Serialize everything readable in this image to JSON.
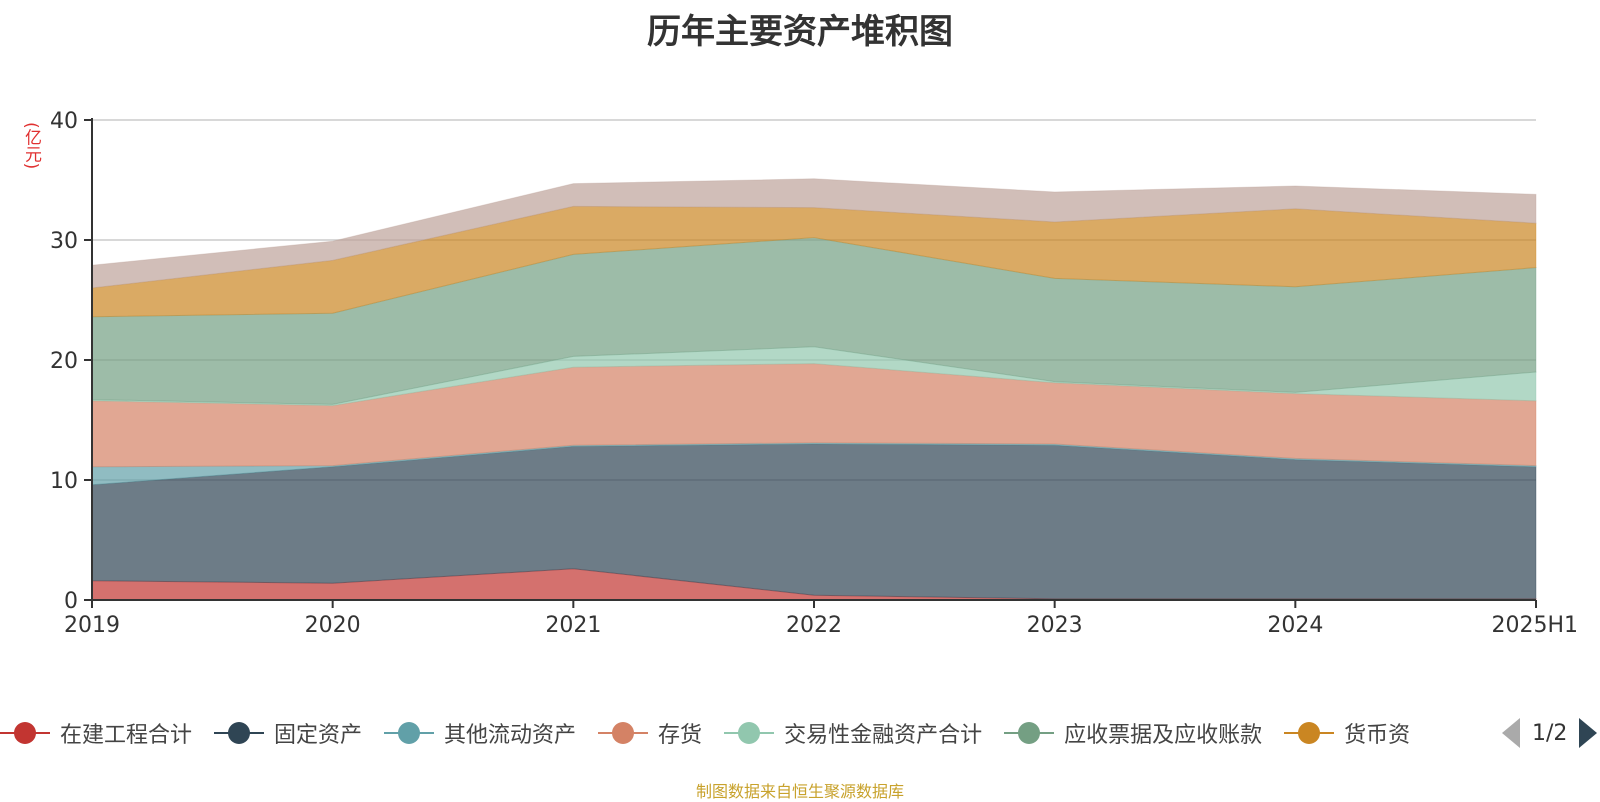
{
  "chart_data": {
    "type": "area",
    "stacked": true,
    "title": "历年主要资产堆积图",
    "ylabel": "(亿元)",
    "ylim": [
      0,
      40
    ],
    "yticks": [
      0,
      10,
      20,
      30,
      40
    ],
    "grid": true,
    "x": [
      "2019",
      "2020",
      "2021",
      "2022",
      "2023",
      "2024",
      "2025H1"
    ],
    "series": [
      {
        "name": "在建工程合计",
        "color": "#c23531",
        "values": [
          1.6,
          1.4,
          2.6,
          0.4,
          0.1,
          0.1,
          0.1
        ]
      },
      {
        "name": "固定资产",
        "color": "#2f4554",
        "values": [
          8.0,
          9.7,
          10.2,
          12.6,
          12.8,
          11.6,
          11.0
        ]
      },
      {
        "name": "其他流动资产",
        "color": "#61a0a8",
        "values": [
          1.5,
          0.1,
          0.1,
          0.1,
          0.1,
          0.1,
          0.1
        ]
      },
      {
        "name": "存货",
        "color": "#d48265",
        "values": [
          5.5,
          5.0,
          6.5,
          6.6,
          5.1,
          5.4,
          5.4
        ]
      },
      {
        "name": "交易性金融资产合计",
        "color": "#91c7ae",
        "values": [
          0.1,
          0.1,
          0.9,
          1.4,
          0.1,
          0.1,
          2.4
        ]
      },
      {
        "name": "应收票据及应收账款",
        "color": "#749f83",
        "values": [
          6.9,
          7.6,
          8.5,
          9.1,
          8.6,
          8.8,
          8.7
        ]
      },
      {
        "name": "货币资金",
        "color": "#ca8622",
        "values": [
          2.4,
          4.4,
          4.0,
          2.5,
          4.7,
          6.5,
          3.7
        ]
      },
      {
        "name": "",
        "color": "#bda29a",
        "values": [
          1.9,
          1.6,
          1.9,
          2.4,
          2.5,
          1.9,
          2.4
        ]
      }
    ]
  },
  "legend": {
    "items": [
      {
        "label": "在建工程合计",
        "color": "#c23531"
      },
      {
        "label": "固定资产",
        "color": "#2f4554"
      },
      {
        "label": "其他流动资产",
        "color": "#61a0a8"
      },
      {
        "label": "存货",
        "color": "#d48265"
      },
      {
        "label": "交易性金融资产合计",
        "color": "#91c7ae"
      },
      {
        "label": "应收票据及应收账款",
        "color": "#749f83"
      },
      {
        "label": "货币资",
        "color": "#ca8622"
      }
    ],
    "page": "1/2"
  },
  "source": "制图数据来自恒生聚源数据库"
}
